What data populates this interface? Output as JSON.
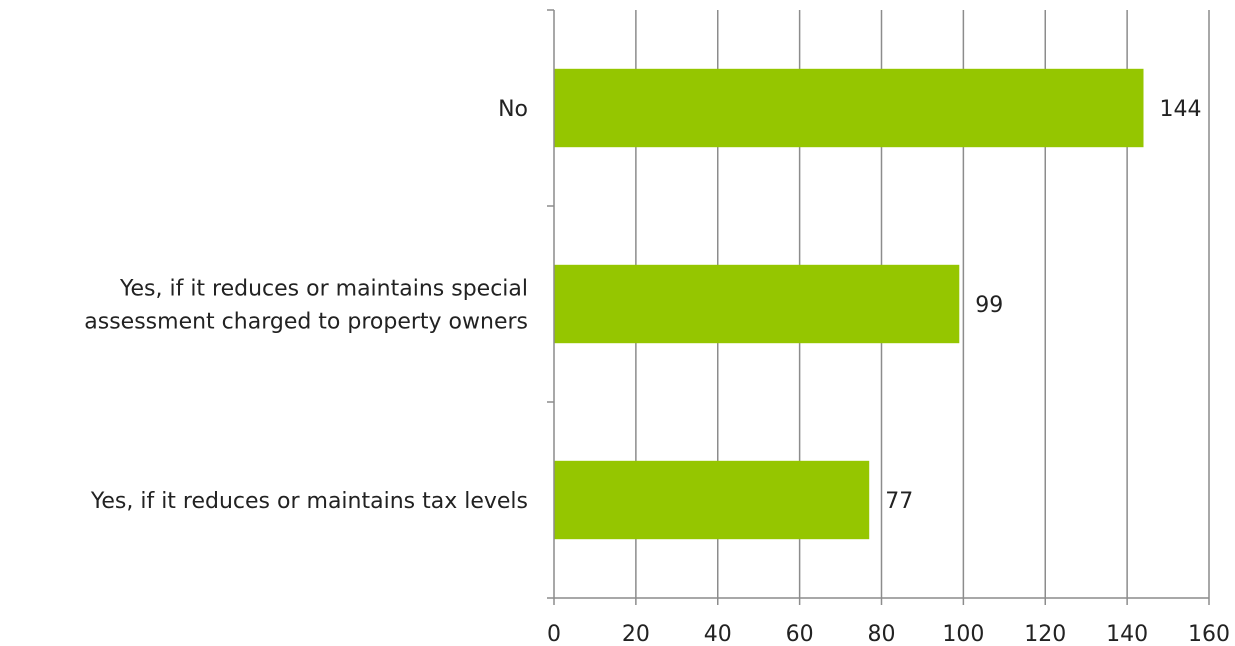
{
  "chart_data": {
    "type": "bar",
    "orientation": "horizontal",
    "categories": [
      [
        "No"
      ],
      [
        "Yes, if it reduces or maintains special",
        "assessment charged to property owners"
      ],
      [
        "Yes, if it reduces or maintains tax levels"
      ]
    ],
    "values": [
      144,
      99,
      77
    ],
    "xlim": [
      0,
      160
    ],
    "xticks": [
      0,
      20,
      40,
      60,
      80,
      100,
      120,
      140,
      160
    ],
    "grid": true,
    "bar_color": "#95c600",
    "grid_color": "#8c8c8c",
    "data_labels": true
  }
}
